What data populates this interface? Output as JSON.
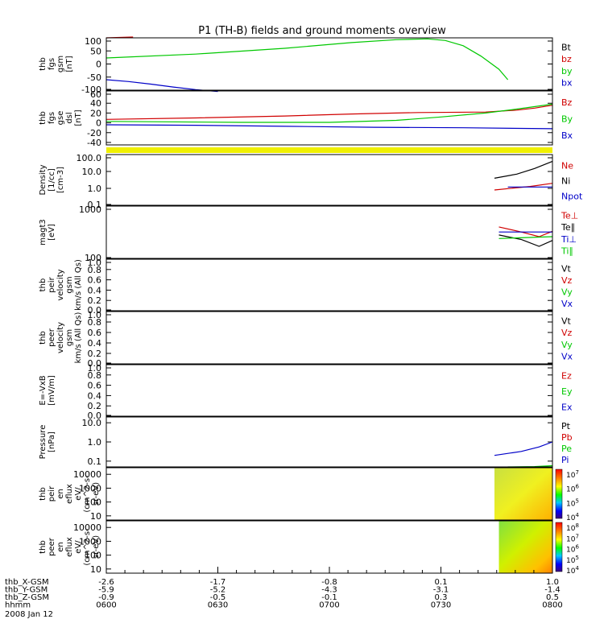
{
  "title": "P1 (TH-B) fields and ground moments overview",
  "time_axis": {
    "ticks": [
      "0600",
      "0630",
      "0700",
      "0730",
      "0800"
    ],
    "rows": [
      {
        "label": "thb_X-GSM",
        "values": [
          "-2.6",
          "-1.7",
          "-0.8",
          "0.1",
          "1.0"
        ]
      },
      {
        "label": "thb_Y-GSM",
        "values": [
          "-5.9",
          "-5.2",
          "-4.3",
          "-3.1",
          "-1.4"
        ]
      },
      {
        "label": "thb_Z-GSM",
        "values": [
          "-0.9",
          "-0.5",
          "-0.1",
          "0.3",
          "0.5"
        ]
      },
      {
        "label": "hhmm",
        "values": [
          "0600",
          "0630",
          "0700",
          "0730",
          "0800"
        ]
      }
    ],
    "date": "2008 Jan 12"
  },
  "colors": {
    "black": "#000000",
    "red": "#d00000",
    "green": "#00c800",
    "blue": "#0000c8",
    "yellow": "#f0f000"
  },
  "chart_data": [
    {
      "type": "line",
      "id": "fgs",
      "ylabel": [
        "thb",
        "fgs",
        "gsm",
        "[nT]"
      ],
      "ylim": [
        -100,
        100
      ],
      "yticks": [
        "100",
        "50",
        "0",
        "-50",
        "-100"
      ],
      "legend": [
        {
          "name": "Bt",
          "color": "black"
        },
        {
          "name": "bz",
          "color": "red"
        },
        {
          "name": "by",
          "color": "green"
        },
        {
          "name": "bx",
          "color": "blue"
        }
      ],
      "series": [
        {
          "name": "bz",
          "color": "red",
          "x": [
            0.0,
            0.06
          ],
          "y": [
            100,
            103
          ]
        },
        {
          "name": "by",
          "color": "green",
          "x": [
            0.0,
            0.2,
            0.4,
            0.55,
            0.65,
            0.72,
            0.76,
            0.8,
            0.84,
            0.88,
            0.9
          ],
          "y": [
            23,
            38,
            60,
            82,
            93,
            96,
            90,
            70,
            30,
            -20,
            -60
          ]
        },
        {
          "name": "bx",
          "color": "blue",
          "x": [
            0.0,
            0.05,
            0.1,
            0.15,
            0.2,
            0.25
          ],
          "y": [
            -60,
            -67,
            -77,
            -88,
            -98,
            -105
          ]
        }
      ]
    },
    {
      "type": "line",
      "id": "fgs_dsl",
      "ylabel": [
        "thb",
        "fgs",
        "gse",
        "dsl",
        "[nT]"
      ],
      "ylim": [
        -45,
        65
      ],
      "yticks": [
        "60",
        "40",
        "20",
        "0",
        "-20",
        "-40"
      ],
      "legend": [
        {
          "name": "Bz",
          "color": "red"
        },
        {
          "name": "By",
          "color": "green"
        },
        {
          "name": "Bx",
          "color": "blue"
        }
      ],
      "series": [
        {
          "name": "Bz",
          "color": "red",
          "x": [
            0.0,
            0.2,
            0.4,
            0.55,
            0.7,
            0.85,
            0.92,
            0.96,
            1.0
          ],
          "y": [
            7,
            10,
            14,
            18,
            21,
            22,
            26,
            30,
            36
          ]
        },
        {
          "name": "By",
          "color": "green",
          "x": [
            0.0,
            0.3,
            0.5,
            0.65,
            0.75,
            0.85,
            0.92,
            1.0
          ],
          "y": [
            3,
            1,
            1,
            5,
            12,
            20,
            28,
            38
          ]
        },
        {
          "name": "Bx",
          "color": "blue",
          "x": [
            0.0,
            0.2,
            0.4,
            0.6,
            0.8,
            1.0
          ],
          "y": [
            -4,
            -5,
            -7,
            -9,
            -10,
            -12
          ]
        }
      ]
    },
    {
      "type": "line",
      "id": "density",
      "ylabel": [
        "Density",
        "[1/cc]",
        "[cm-3]"
      ],
      "log": true,
      "ylim": [
        0.1,
        100
      ],
      "yticks": [
        "100.0",
        "10.0",
        "1.0",
        "0.1"
      ],
      "legend": [
        {
          "name": "Ne",
          "color": "red"
        },
        {
          "name": "Ni",
          "color": "black"
        },
        {
          "name": "Npot",
          "color": "blue"
        }
      ],
      "series": [
        {
          "name": "Ni",
          "color": "black",
          "x": [
            0.87,
            0.92,
            0.96,
            1.0
          ],
          "y": [
            4,
            7,
            15,
            40
          ]
        },
        {
          "name": "Ne",
          "color": "red",
          "x": [
            0.87,
            0.95,
            1.0
          ],
          "y": [
            0.8,
            1.3,
            2
          ]
        },
        {
          "name": "Npot",
          "color": "blue",
          "x": [
            0.9,
            1.0
          ],
          "y": [
            1.2,
            1.2
          ]
        }
      ]
    },
    {
      "type": "line",
      "id": "temp",
      "ylabel": [
        "magt3",
        "[eV]"
      ],
      "log": true,
      "ylim": [
        100,
        1000
      ],
      "yticks": [
        "1000",
        "100"
      ],
      "legend": [
        {
          "name": "Te⊥",
          "color": "red"
        },
        {
          "name": "Te∥",
          "color": "black"
        },
        {
          "name": "Ti⊥",
          "color": "blue"
        },
        {
          "name": "Ti∥",
          "color": "green"
        }
      ],
      "series": [
        {
          "name": "Te⊥",
          "color": "red",
          "x": [
            0.88,
            0.93,
            0.97,
            1.0
          ],
          "y": [
            400,
            320,
            260,
            330
          ]
        },
        {
          "name": "Te∥",
          "color": "black",
          "x": [
            0.88,
            0.93,
            0.97,
            1.0
          ],
          "y": [
            280,
            230,
            170,
            220
          ]
        },
        {
          "name": "Ti⊥",
          "color": "blue",
          "x": [
            0.88,
            1.0
          ],
          "y": [
            320,
            320
          ]
        },
        {
          "name": "Ti∥",
          "color": "green",
          "x": [
            0.88,
            1.0
          ],
          "y": [
            240,
            260
          ]
        }
      ]
    },
    {
      "type": "line",
      "id": "peir_vel",
      "ylabel": [
        "thb",
        "peir",
        "velocity",
        "gsm",
        "km/s (All Qs)"
      ],
      "ylim": [
        0,
        1
      ],
      "yticks": [
        "1.0",
        "0.8",
        "0.6",
        "0.4",
        "0.2",
        "0.0"
      ],
      "legend": [
        {
          "name": "Vt",
          "color": "black"
        },
        {
          "name": "Vz",
          "color": "red"
        },
        {
          "name": "Vy",
          "color": "green"
        },
        {
          "name": "Vx",
          "color": "blue"
        }
      ],
      "series": []
    },
    {
      "type": "line",
      "id": "peer_vel",
      "ylabel": [
        "thb",
        "peer",
        "velocity",
        "gsm",
        "km/s (All Qs)"
      ],
      "ylim": [
        0,
        1
      ],
      "yticks": [
        "1.0",
        "0.8",
        "0.6",
        "0.4",
        "0.2",
        "0.0"
      ],
      "legend": [
        {
          "name": "Vt",
          "color": "black"
        },
        {
          "name": "Vz",
          "color": "red"
        },
        {
          "name": "Vy",
          "color": "green"
        },
        {
          "name": "Vx",
          "color": "blue"
        }
      ],
      "series": []
    },
    {
      "type": "line",
      "id": "efield",
      "ylabel": [
        "E=-VxB",
        "[mV/m]"
      ],
      "ylim": [
        0,
        1
      ],
      "yticks": [
        "1.0",
        "0.8",
        "0.6",
        "0.4",
        "0.2",
        "0.0"
      ],
      "legend": [
        {
          "name": "Ez",
          "color": "red"
        },
        {
          "name": "Ey",
          "color": "green"
        },
        {
          "name": "Ex",
          "color": "blue"
        }
      ],
      "series": []
    },
    {
      "type": "line",
      "id": "pressure",
      "ylabel": [
        "Pressure",
        "[nPa]"
      ],
      "log": true,
      "ylim": [
        0.05,
        20
      ],
      "yticks": [
        "10.0",
        "1.0",
        "0.1"
      ],
      "legend": [
        {
          "name": "Pt",
          "color": "black"
        },
        {
          "name": "Pb",
          "color": "red"
        },
        {
          "name": "Pe",
          "color": "green"
        },
        {
          "name": "Pi",
          "color": "blue"
        }
      ],
      "series": [
        {
          "name": "Pi",
          "color": "blue",
          "x": [
            0.87,
            0.93,
            0.97,
            1.0
          ],
          "y": [
            0.2,
            0.32,
            0.55,
            1.0
          ]
        },
        {
          "name": "Pe",
          "color": "green",
          "x": [
            0.9,
            0.96,
            1.0
          ],
          "y": [
            0.05,
            0.052,
            0.058
          ]
        }
      ]
    },
    {
      "type": "heatmap",
      "id": "peir_spec",
      "ylabel": [
        "thb",
        "peir",
        "en",
        "eflux",
        "eV/",
        "(cm^2-s-",
        "sr-eV)"
      ],
      "log": true,
      "ylim": [
        5,
        30000
      ],
      "yticks": [
        "10000",
        "1000",
        "100",
        "10"
      ],
      "colorbar": {
        "ticks": [
          "10^7",
          "10^6",
          "10^5",
          "10^4"
        ]
      },
      "x_range": [
        0.87,
        1.0
      ]
    },
    {
      "type": "heatmap",
      "id": "peer_spec",
      "ylabel": [
        "thb",
        "peer",
        "en",
        "eflux",
        "eV/",
        "(cm^2-s-",
        "sr-eV)"
      ],
      "log": true,
      "ylim": [
        5,
        30000
      ],
      "yticks": [
        "10000",
        "1000",
        "100",
        "10"
      ],
      "colorbar": {
        "ticks": [
          "10^8",
          "10^7",
          "10^6",
          "10^5",
          "10^4"
        ]
      },
      "x_range": [
        0.88,
        1.0
      ]
    }
  ]
}
